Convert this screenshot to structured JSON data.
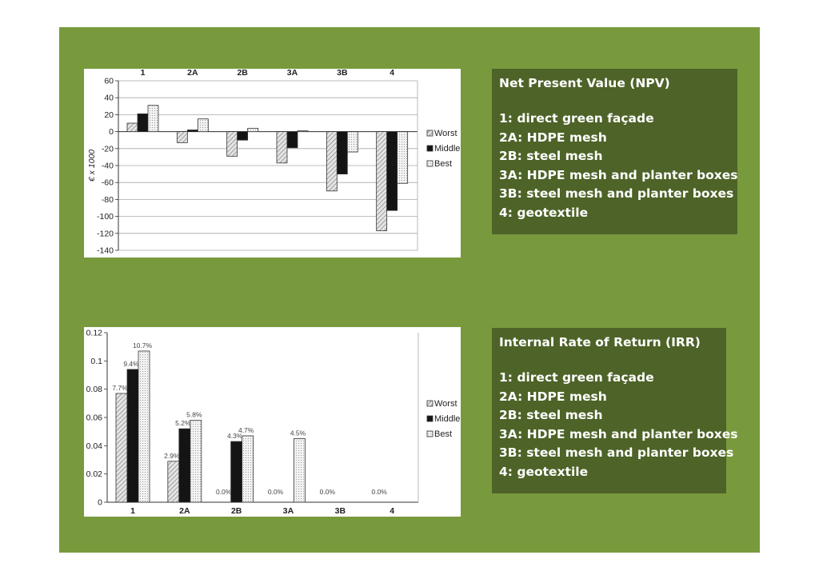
{
  "colors": {
    "slide_bg": "#789a3d",
    "text_box_bg": "#4e6328",
    "worst_fill": "hatched-light-gray",
    "middle_fill": "#141414",
    "best_fill": "dotted-light-gray"
  },
  "npv_box": {
    "title": "Net Present Value (NPV)",
    "items": [
      "1: direct green façade",
      "2A: HDPE mesh",
      "2B: steel mesh",
      "3A: HDPE mesh and planter boxes",
      "3B: steel mesh and planter boxes",
      "4: geotextile"
    ]
  },
  "irr_box": {
    "title": "Internal Rate of Return (IRR)",
    "items": [
      "1: direct green façade",
      "2A: HDPE mesh",
      "2B: steel mesh",
      "3A: HDPE mesh and planter boxes",
      "3B: steel mesh and planter boxes",
      "4: geotextile"
    ]
  },
  "chart_data": [
    {
      "type": "bar",
      "categories": [
        "1",
        "2A",
        "2B",
        "3A",
        "3B",
        "4"
      ],
      "category_axis_position": "top",
      "ylabel": "€ x 1000",
      "ylim": [
        -140,
        60
      ],
      "yticks": [
        "60",
        "40",
        "20",
        "0",
        "-20",
        "-40",
        "-60",
        "-80",
        "-100",
        "-120",
        "-140"
      ],
      "grid": true,
      "legend": "right",
      "series": [
        {
          "name": "Worst",
          "values": [
            10,
            -13,
            -29,
            -37,
            -70,
            -117
          ]
        },
        {
          "name": "Middle",
          "values": [
            21,
            2,
            -10,
            -19,
            -50,
            -93
          ]
        },
        {
          "name": "Best",
          "values": [
            31,
            15,
            4,
            1,
            -24,
            -61
          ]
        }
      ]
    },
    {
      "type": "bar",
      "categories": [
        "1",
        "2A",
        "2B",
        "3A",
        "3B",
        "4"
      ],
      "category_axis_position": "bottom",
      "ylim": [
        0,
        0.12
      ],
      "yticks": [
        "0.12",
        "0.1",
        "0.08",
        "0.06",
        "0.04",
        "0.02",
        "0"
      ],
      "grid": false,
      "legend": "right",
      "series": [
        {
          "name": "Worst",
          "values": [
            0.077,
            0.029,
            0,
            0,
            0,
            0
          ],
          "labels": [
            "7.7%",
            "2.9%",
            "0.0%",
            "0.0%",
            "0.0%",
            "0.0%"
          ]
        },
        {
          "name": "Middle",
          "values": [
            0.094,
            0.052,
            0.043,
            0,
            0,
            0
          ],
          "labels": [
            "9.4%",
            "5.2%",
            "4.3%",
            "",
            "",
            ""
          ]
        },
        {
          "name": "Best",
          "values": [
            0.107,
            0.058,
            0.047,
            0.045,
            0,
            0
          ],
          "labels": [
            "10.7%",
            "5.8%",
            "4.7%",
            "4.5%",
            "",
            ""
          ]
        }
      ]
    }
  ]
}
